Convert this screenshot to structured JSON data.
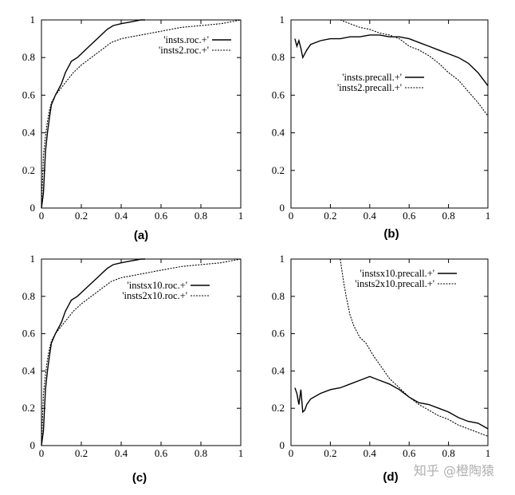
{
  "chart_data": [
    {
      "type": "line",
      "panel": "(a)",
      "xlim": [
        0,
        1
      ],
      "ylim": [
        0,
        1
      ],
      "xticks": [
        "0",
        "0.2",
        "0.4",
        "0.6",
        "0.8",
        "1"
      ],
      "yticks": [
        "0",
        "0.2",
        "0.4",
        "0.6",
        "0.8",
        "1"
      ],
      "legend_position": "top-right",
      "series": [
        {
          "name": "'insts.roc.+'",
          "style": "solid",
          "x": [
            0,
            0.01,
            0.02,
            0.03,
            0.04,
            0.05,
            0.07,
            0.1,
            0.12,
            0.15,
            0.18,
            0.2,
            0.23,
            0.26,
            0.3,
            0.33,
            0.36,
            0.4,
            0.45,
            0.5,
            0.52
          ],
          "y": [
            0,
            0.08,
            0.3,
            0.4,
            0.48,
            0.55,
            0.6,
            0.66,
            0.72,
            0.78,
            0.8,
            0.82,
            0.85,
            0.88,
            0.92,
            0.95,
            0.97,
            0.98,
            0.99,
            1.0,
            1.0
          ]
        },
        {
          "name": "'insts2.roc.+'",
          "style": "dashed",
          "x": [
            0,
            0.01,
            0.02,
            0.03,
            0.04,
            0.05,
            0.07,
            0.1,
            0.13,
            0.16,
            0.2,
            0.25,
            0.3,
            0.35,
            0.4,
            0.45,
            0.5,
            0.6,
            0.7,
            0.8,
            0.9,
            0.95,
            1.0
          ],
          "y": [
            0,
            0.28,
            0.38,
            0.46,
            0.52,
            0.56,
            0.6,
            0.64,
            0.68,
            0.72,
            0.76,
            0.8,
            0.84,
            0.88,
            0.9,
            0.91,
            0.92,
            0.94,
            0.96,
            0.97,
            0.98,
            0.99,
            1.0
          ]
        }
      ]
    },
    {
      "type": "line",
      "panel": "(b)",
      "xlim": [
        0,
        1
      ],
      "ylim": [
        0,
        1
      ],
      "xticks": [
        "0",
        "0.2",
        "0.4",
        "0.6",
        "0.8",
        "1"
      ],
      "yticks": [
        "0",
        "0.2",
        "0.4",
        "0.6",
        "0.8",
        "1"
      ],
      "legend_position": "middle-right",
      "series": [
        {
          "name": "'insts.precall.+'",
          "style": "solid",
          "x": [
            0.02,
            0.03,
            0.04,
            0.05,
            0.06,
            0.08,
            0.1,
            0.15,
            0.2,
            0.25,
            0.3,
            0.35,
            0.4,
            0.45,
            0.5,
            0.55,
            0.6,
            0.65,
            0.7,
            0.75,
            0.8,
            0.85,
            0.9,
            0.95,
            1.0
          ],
          "y": [
            0.9,
            0.86,
            0.89,
            0.85,
            0.8,
            0.84,
            0.87,
            0.89,
            0.9,
            0.9,
            0.91,
            0.91,
            0.92,
            0.92,
            0.91,
            0.91,
            0.9,
            0.88,
            0.86,
            0.84,
            0.82,
            0.8,
            0.77,
            0.72,
            0.65
          ]
        },
        {
          "name": "'insts2.precall.+'",
          "style": "dashed",
          "x": [
            0.25,
            0.3,
            0.35,
            0.4,
            0.45,
            0.5,
            0.55,
            0.6,
            0.65,
            0.7,
            0.75,
            0.8,
            0.85,
            0.9,
            0.95,
            1.0
          ],
          "y": [
            1.0,
            0.98,
            0.96,
            0.95,
            0.93,
            0.92,
            0.9,
            0.86,
            0.84,
            0.81,
            0.77,
            0.72,
            0.68,
            0.62,
            0.56,
            0.49
          ]
        }
      ]
    },
    {
      "type": "line",
      "panel": "(c)",
      "xlim": [
        0,
        1
      ],
      "ylim": [
        0,
        1
      ],
      "xticks": [
        "0",
        "0.2",
        "0.4",
        "0.6",
        "0.8",
        "1"
      ],
      "yticks": [
        "0",
        "0.2",
        "0.4",
        "0.6",
        "0.8",
        "1"
      ],
      "legend_position": "top-right",
      "series": [
        {
          "name": "'instsx10.roc.+'",
          "style": "solid",
          "x": [
            0,
            0.01,
            0.02,
            0.03,
            0.04,
            0.05,
            0.07,
            0.1,
            0.12,
            0.15,
            0.18,
            0.2,
            0.23,
            0.26,
            0.3,
            0.33,
            0.36,
            0.4,
            0.45,
            0.5,
            0.52
          ],
          "y": [
            0,
            0.08,
            0.3,
            0.4,
            0.48,
            0.55,
            0.6,
            0.66,
            0.72,
            0.78,
            0.8,
            0.82,
            0.85,
            0.88,
            0.92,
            0.95,
            0.97,
            0.98,
            0.99,
            1.0,
            1.0
          ]
        },
        {
          "name": "'insts2x10.roc.+'",
          "style": "dashed",
          "x": [
            0,
            0.01,
            0.02,
            0.03,
            0.04,
            0.05,
            0.07,
            0.1,
            0.13,
            0.16,
            0.2,
            0.25,
            0.3,
            0.35,
            0.4,
            0.45,
            0.5,
            0.6,
            0.7,
            0.8,
            0.9,
            0.95,
            1.0
          ],
          "y": [
            0,
            0.28,
            0.38,
            0.46,
            0.52,
            0.56,
            0.6,
            0.64,
            0.68,
            0.72,
            0.76,
            0.8,
            0.84,
            0.88,
            0.9,
            0.91,
            0.92,
            0.94,
            0.96,
            0.97,
            0.98,
            0.99,
            1.0
          ]
        }
      ]
    },
    {
      "type": "line",
      "panel": "(d)",
      "xlim": [
        0,
        1
      ],
      "ylim": [
        0,
        1
      ],
      "xticks": [
        "0",
        "0.2",
        "0.4",
        "0.6",
        "0.8",
        "1"
      ],
      "yticks": [
        "0",
        "0.2",
        "0.4",
        "0.6",
        "0.8",
        "1"
      ],
      "legend_position": "top-right",
      "series": [
        {
          "name": "'instsx10.precall.+'",
          "style": "solid",
          "x": [
            0.02,
            0.03,
            0.04,
            0.05,
            0.06,
            0.07,
            0.08,
            0.1,
            0.15,
            0.2,
            0.25,
            0.3,
            0.35,
            0.4,
            0.45,
            0.5,
            0.55,
            0.6,
            0.65,
            0.7,
            0.75,
            0.8,
            0.85,
            0.9,
            0.95,
            1.0
          ],
          "y": [
            0.31,
            0.28,
            0.22,
            0.3,
            0.18,
            0.19,
            0.22,
            0.25,
            0.28,
            0.3,
            0.31,
            0.33,
            0.35,
            0.37,
            0.35,
            0.33,
            0.3,
            0.26,
            0.23,
            0.22,
            0.2,
            0.18,
            0.15,
            0.13,
            0.12,
            0.09
          ]
        },
        {
          "name": "'insts2x10.precall.+'",
          "style": "dashed",
          "x": [
            0.25,
            0.26,
            0.27,
            0.28,
            0.3,
            0.32,
            0.35,
            0.38,
            0.42,
            0.46,
            0.5,
            0.55,
            0.6,
            0.65,
            0.7,
            0.75,
            0.8,
            0.85,
            0.9,
            0.95,
            1.0
          ],
          "y": [
            1.0,
            0.93,
            0.86,
            0.8,
            0.7,
            0.64,
            0.58,
            0.55,
            0.48,
            0.42,
            0.36,
            0.31,
            0.26,
            0.22,
            0.19,
            0.16,
            0.14,
            0.11,
            0.09,
            0.07,
            0.05
          ]
        }
      ]
    }
  ],
  "watermark": "知乎 @橙陶猿"
}
